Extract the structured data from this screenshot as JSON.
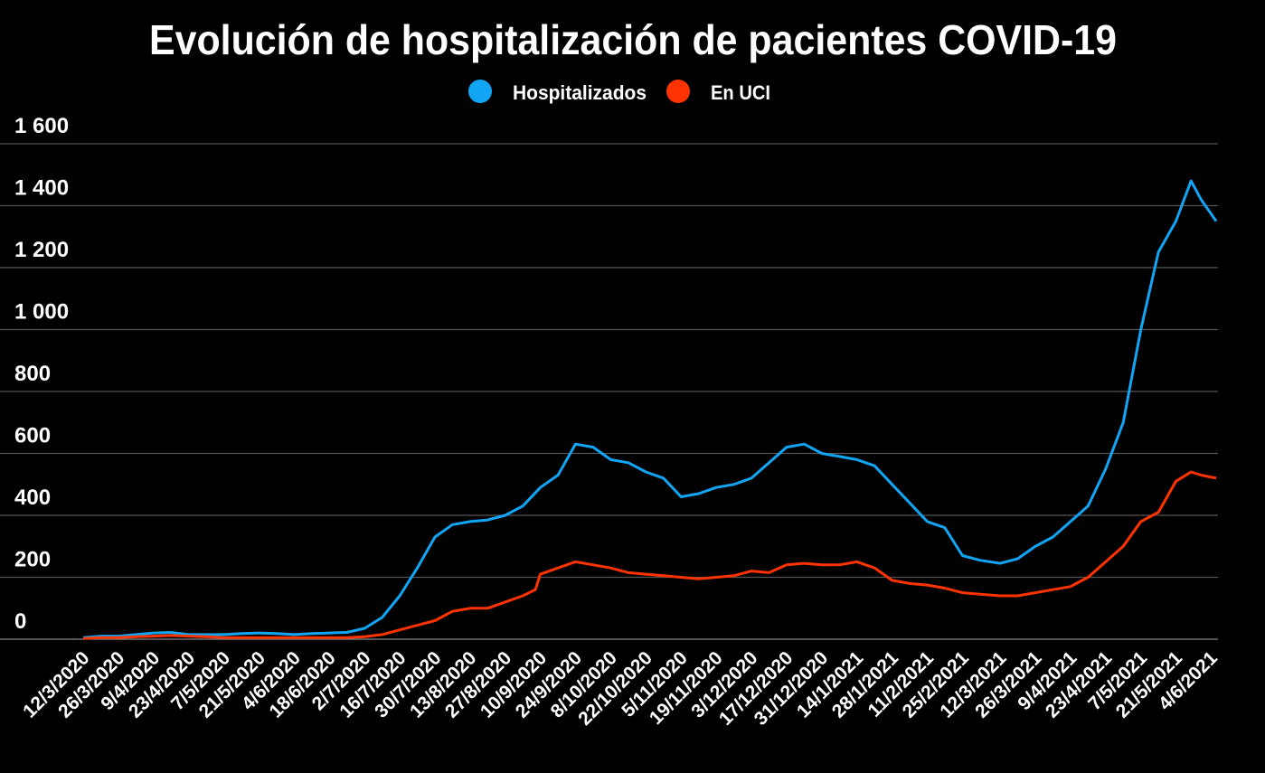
{
  "chart_data": {
    "type": "line",
    "title": "Evolución de hospitalización de pacientes COVID-19",
    "xlabel": "",
    "ylabel": "",
    "ylim": [
      0,
      1600
    ],
    "yticks": [
      0,
      200,
      400,
      600,
      800,
      1000,
      1200,
      1400,
      1600
    ],
    "ytick_labels": [
      "0",
      "200",
      "400",
      "600",
      "800",
      "1 000",
      "1 200",
      "1 400",
      "1 600"
    ],
    "grid": true,
    "legend_position": "top-center",
    "x_unit": "days since 12/3/2020",
    "xlim": [
      0,
      451
    ],
    "xticks": [
      0,
      14,
      28,
      42,
      56,
      70,
      84,
      98,
      112,
      126,
      140,
      154,
      168,
      182,
      196,
      210,
      224,
      238,
      252,
      266,
      280,
      294,
      308,
      322,
      336,
      350,
      365,
      379,
      393,
      407,
      421,
      435,
      449
    ],
    "xtick_labels": [
      "12/3/2020",
      "26/3/2020",
      "9/4/2020",
      "23/4/2020",
      "7/5/2020",
      "21/5/2020",
      "4/6/2020",
      "18/6/2020",
      "2/7/2020",
      "16/7/2020",
      "30/7/2020",
      "13/8/2020",
      "27/8/2020",
      "10/9/2020",
      "24/9/2020",
      "8/10/2020",
      "22/10/2020",
      "5/11/2020",
      "19/11/2020",
      "3/12/2020",
      "17/12/2020",
      "31/12/2020",
      "14/1/2021",
      "28/1/2021",
      "11/2/2021",
      "25/2/2021",
      "12/3/2021",
      "26/3/2021",
      "9/4/2021",
      "23/4/2021",
      "7/5/2021",
      "21/5/2021",
      "4/6/2021"
    ],
    "series": [
      {
        "name": "Hospitalizados",
        "color": "#12a5f4",
        "x": [
          0,
          7,
          14,
          21,
          28,
          35,
          42,
          49,
          56,
          63,
          70,
          77,
          84,
          91,
          98,
          105,
          112,
          119,
          126,
          133,
          140,
          147,
          154,
          161,
          168,
          175,
          182,
          189,
          196,
          203,
          210,
          217,
          224,
          231,
          238,
          245,
          252,
          259,
          266,
          273,
          280,
          287,
          294,
          301,
          308,
          315,
          322,
          329,
          336,
          343,
          350,
          357,
          365,
          372,
          379,
          386,
          393,
          400,
          407,
          414,
          421,
          428,
          435,
          441,
          445,
          451
        ],
        "values": [
          5,
          10,
          10,
          15,
          20,
          22,
          15,
          15,
          15,
          18,
          20,
          18,
          15,
          18,
          20,
          22,
          35,
          70,
          140,
          230,
          330,
          370,
          380,
          385,
          400,
          430,
          490,
          530,
          630,
          620,
          580,
          570,
          540,
          520,
          460,
          470,
          490,
          500,
          520,
          570,
          620,
          630,
          600,
          590,
          580,
          560,
          500,
          440,
          380,
          360,
          270,
          255,
          245,
          260,
          300,
          330,
          380,
          430,
          550,
          700,
          1000,
          1250,
          1350,
          1480,
          1420,
          1350
        ]
      },
      {
        "name": "En UCI",
        "color": "#ff3300",
        "x": [
          0,
          7,
          14,
          21,
          28,
          35,
          42,
          49,
          56,
          63,
          70,
          77,
          84,
          91,
          98,
          105,
          112,
          119,
          126,
          133,
          140,
          147,
          154,
          161,
          168,
          175,
          180,
          182,
          189,
          196,
          203,
          210,
          217,
          224,
          231,
          238,
          245,
          252,
          259,
          266,
          273,
          280,
          287,
          294,
          301,
          308,
          315,
          322,
          329,
          336,
          343,
          350,
          357,
          365,
          372,
          379,
          386,
          393,
          400,
          407,
          414,
          421,
          428,
          435,
          441,
          445,
          451
        ],
        "values": [
          2,
          5,
          5,
          8,
          10,
          12,
          10,
          8,
          5,
          5,
          5,
          5,
          5,
          5,
          5,
          5,
          8,
          15,
          30,
          45,
          60,
          90,
          100,
          100,
          120,
          140,
          160,
          210,
          230,
          250,
          240,
          230,
          215,
          210,
          205,
          200,
          195,
          200,
          205,
          220,
          215,
          240,
          245,
          240,
          240,
          250,
          230,
          190,
          180,
          175,
          165,
          150,
          145,
          140,
          140,
          150,
          160,
          170,
          200,
          250,
          300,
          380,
          410,
          510,
          540,
          530,
          520
        ]
      }
    ]
  }
}
